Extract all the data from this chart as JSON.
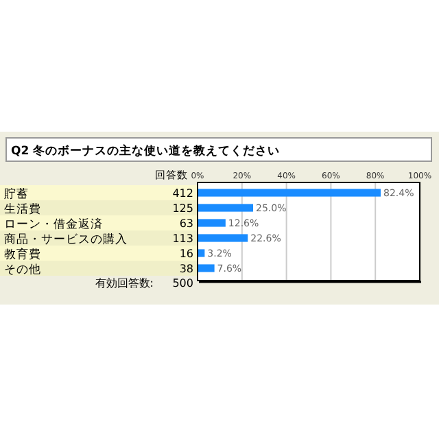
{
  "chart_data": {
    "type": "bar",
    "orientation": "horizontal",
    "title": "Q2 冬のボーナスの主な使い道を教えてください",
    "categories": [
      "貯蓄",
      "生活費",
      "ローン・借金返済",
      "商品・サービスの購入",
      "教育費",
      "その他"
    ],
    "values": [
      82.4,
      25.0,
      12.6,
      22.6,
      3.2,
      7.6
    ],
    "value_labels": [
      "82.4%",
      "25.0%",
      "12.6%",
      "22.6%",
      "3.2%",
      "7.6%"
    ],
    "color": "#1a8cff",
    "xlim": [
      0,
      100
    ],
    "xticks": [
      {
        "value": 0,
        "label": "0%"
      },
      {
        "value": 20,
        "label": "20%"
      },
      {
        "value": 40,
        "label": "40%"
      },
      {
        "value": 60,
        "label": "60%"
      },
      {
        "value": 80,
        "label": "80%"
      },
      {
        "value": 100,
        "label": "100%"
      }
    ],
    "grid": "x",
    "annotations": [
      "回答数",
      "有効回答数:",
      "500",
      "412",
      "125",
      "63",
      "113",
      "16",
      "38"
    ]
  }
}
